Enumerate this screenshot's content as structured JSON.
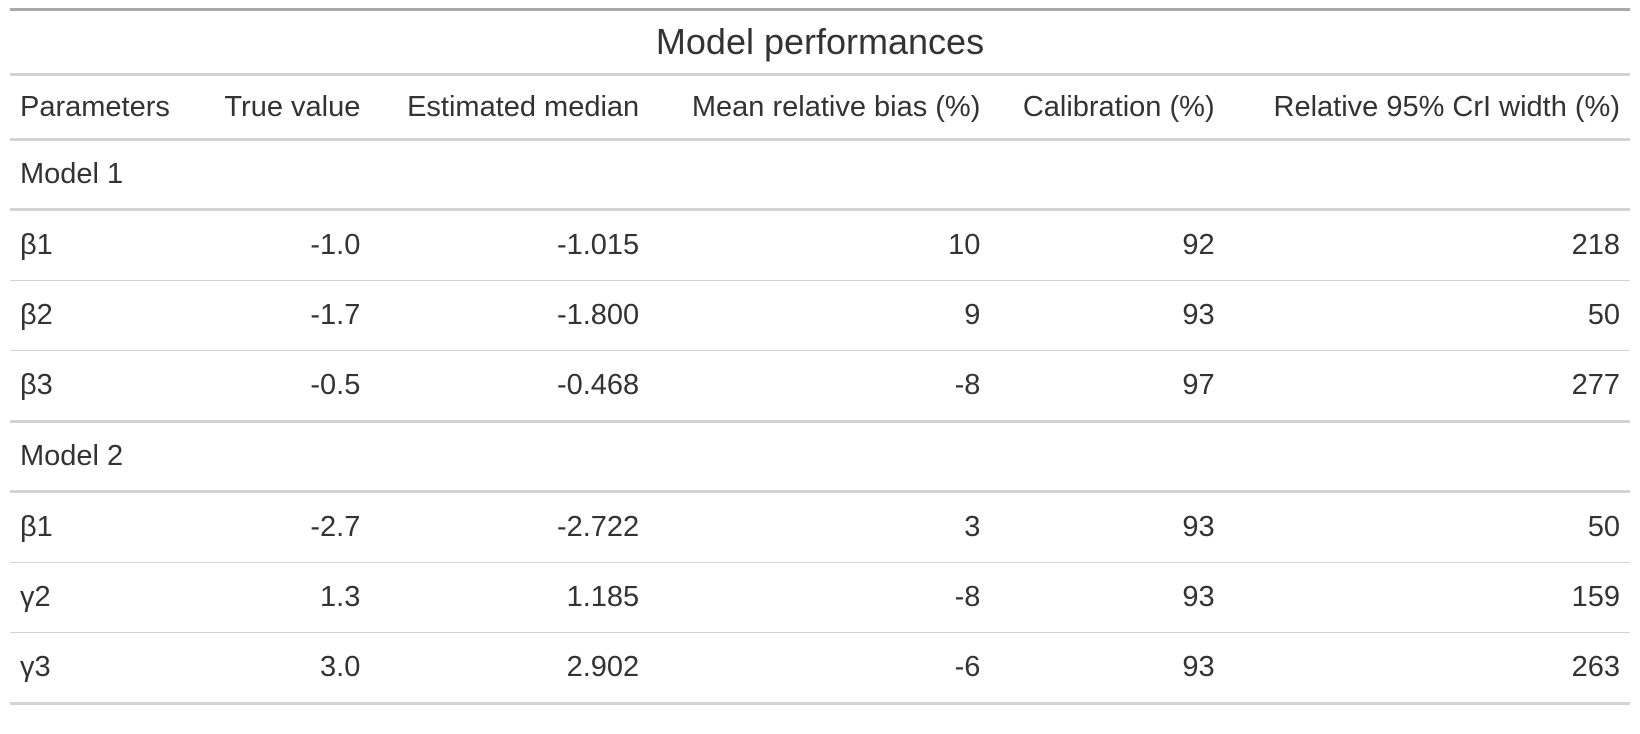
{
  "table": {
    "title": "Model performances",
    "columns": [
      "Parameters",
      "True value",
      "Estimated median",
      "Mean relative bias (%)",
      "Calibration (%)",
      "Relative 95% CrI width (%)"
    ],
    "groups": [
      {
        "label": "Model 1",
        "rows": [
          {
            "parameter": "β1",
            "true_value": "-1.0",
            "estimated_median": "-1.015",
            "mean_relative_bias": "10",
            "calibration": "92",
            "relative_cri_width": "218"
          },
          {
            "parameter": "β2",
            "true_value": "-1.7",
            "estimated_median": "-1.800",
            "mean_relative_bias": "9",
            "calibration": "93",
            "relative_cri_width": "50"
          },
          {
            "parameter": "β3",
            "true_value": "-0.5",
            "estimated_median": "-0.468",
            "mean_relative_bias": "-8",
            "calibration": "97",
            "relative_cri_width": "277"
          }
        ]
      },
      {
        "label": "Model 2",
        "rows": [
          {
            "parameter": "β1",
            "true_value": "-2.7",
            "estimated_median": "-2.722",
            "mean_relative_bias": "3",
            "calibration": "93",
            "relative_cri_width": "50"
          },
          {
            "parameter": "γ2",
            "true_value": "1.3",
            "estimated_median": "1.185",
            "mean_relative_bias": "-8",
            "calibration": "93",
            "relative_cri_width": "159"
          },
          {
            "parameter": "γ3",
            "true_value": "3.0",
            "estimated_median": "2.902",
            "mean_relative_bias": "-6",
            "calibration": "93",
            "relative_cri_width": "263"
          }
        ]
      }
    ]
  }
}
